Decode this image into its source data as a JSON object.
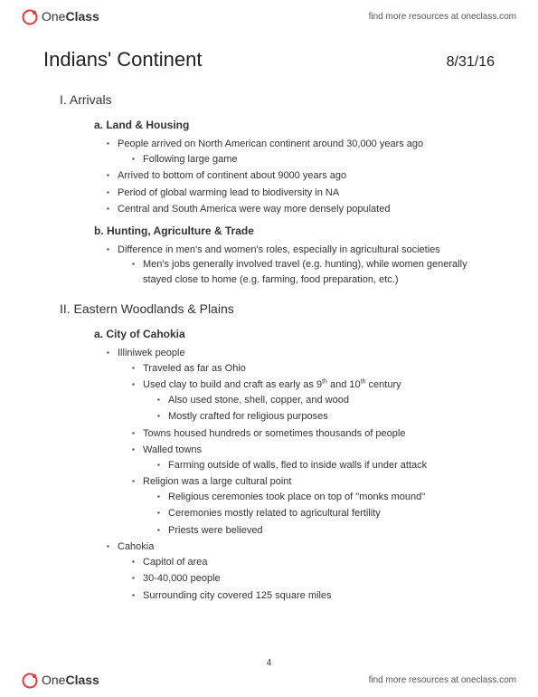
{
  "brand": {
    "part1": "One",
    "part2": "Class"
  },
  "findLink": "find more resources at oneclass.com",
  "title": "Indians' Continent",
  "date": "8/31/16",
  "pageNumber": "4",
  "sections": [
    {
      "heading": "I. Arrivals",
      "subs": [
        {
          "heading": "a. Land & Housing",
          "items": [
            {
              "text": "People arrived on North American continent around 30,000 years ago",
              "children": [
                {
                  "text": "Following large game"
                }
              ]
            },
            {
              "text": "Arrived to bottom of continent about 9000 years ago"
            },
            {
              "text": "Period of global warming lead to biodiversity in NA"
            },
            {
              "text": "Central and South America were way more densely populated"
            }
          ]
        },
        {
          "heading": "b. Hunting, Agriculture & Trade",
          "items": [
            {
              "text": "Difference in men's and women's roles, especially in agricultural societies",
              "children": [
                {
                  "text": "Men's jobs generally involved travel (e.g. hunting), while women generally stayed close to home (e.g. farming, food preparation, etc.)"
                }
              ]
            }
          ]
        }
      ]
    },
    {
      "heading": "II. Eastern Woodlands & Plains",
      "subs": [
        {
          "heading": "a. City of Cahokia",
          "items": [
            {
              "text": "Illiniwek people",
              "children": [
                {
                  "text": "Traveled as far as Ohio"
                },
                {
                  "text": "Used clay to build and craft as early as 9th and 10th century",
                  "children": [
                    {
                      "text": "Also used stone, shell, copper, and wood"
                    },
                    {
                      "text": "Mostly crafted for religious purposes"
                    }
                  ]
                },
                {
                  "text": "Towns housed hundreds or sometimes thousands of people"
                },
                {
                  "text": "Walled towns",
                  "children": [
                    {
                      "text": "Farming outside of walls, fled to inside walls if under attack"
                    }
                  ]
                },
                {
                  "text": "Religion was a large cultural point",
                  "children": [
                    {
                      "text": "Religious ceremonies took place on top of \"monks mound\""
                    },
                    {
                      "text": "Ceremonies mostly related to agricultural fertility"
                    },
                    {
                      "text": "Priests were believed"
                    }
                  ]
                }
              ]
            },
            {
              "text": "Cahokia",
              "children": [
                {
                  "text": "Capitol of area"
                },
                {
                  "text": "30-40,000 people"
                },
                {
                  "text": "Surrounding city covered 125 square miles"
                }
              ]
            }
          ]
        }
      ]
    }
  ]
}
